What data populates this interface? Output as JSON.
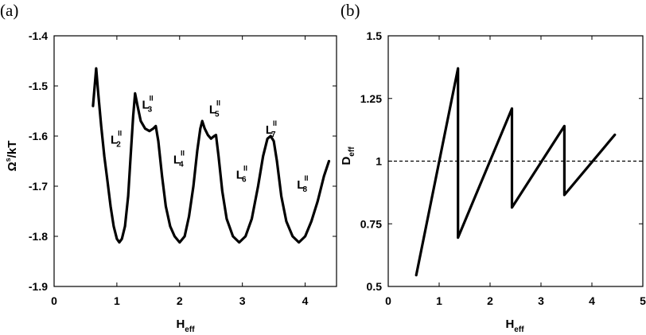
{
  "chart_data": [
    {
      "type": "line",
      "panel_label": "(a)",
      "xlabel": {
        "main": "H",
        "sub": "eff"
      },
      "ylabel": {
        "main": "Ω",
        "sup": "s",
        "rest": "/kT"
      },
      "xlim": [
        0,
        4.5
      ],
      "ylim": [
        -1.9,
        -1.4
      ],
      "xticks": [
        "0",
        "1",
        "2",
        "3",
        "4"
      ],
      "yticks": [
        "-1.4",
        "-1.5",
        "-1.6",
        "-1.7",
        "-1.8",
        "-1.9"
      ],
      "series": [
        {
          "points": [
            [
              0.62,
              -1.54
            ],
            [
              0.64,
              -1.51
            ],
            [
              0.67,
              -1.465
            ],
            [
              0.7,
              -1.51
            ],
            [
              0.75,
              -1.58
            ],
            [
              0.8,
              -1.64
            ],
            [
              0.85,
              -1.69
            ],
            [
              0.9,
              -1.74
            ],
            [
              0.95,
              -1.78
            ],
            [
              1.0,
              -1.805
            ],
            [
              1.04,
              -1.812
            ],
            [
              1.08,
              -1.805
            ],
            [
              1.13,
              -1.78
            ],
            [
              1.18,
              -1.72
            ],
            [
              1.22,
              -1.64
            ],
            [
              1.26,
              -1.56
            ],
            [
              1.29,
              -1.515
            ],
            [
              1.33,
              -1.54
            ],
            [
              1.38,
              -1.57
            ],
            [
              1.45,
              -1.585
            ],
            [
              1.52,
              -1.59
            ],
            [
              1.58,
              -1.585
            ],
            [
              1.62,
              -1.58
            ],
            [
              1.66,
              -1.61
            ],
            [
              1.72,
              -1.68
            ],
            [
              1.78,
              -1.74
            ],
            [
              1.85,
              -1.78
            ],
            [
              1.92,
              -1.8
            ],
            [
              2.0,
              -1.812
            ],
            [
              2.08,
              -1.8
            ],
            [
              2.15,
              -1.76
            ],
            [
              2.22,
              -1.7
            ],
            [
              2.28,
              -1.63
            ],
            [
              2.33,
              -1.585
            ],
            [
              2.36,
              -1.57
            ],
            [
              2.4,
              -1.585
            ],
            [
              2.45,
              -1.598
            ],
            [
              2.5,
              -1.605
            ],
            [
              2.55,
              -1.6
            ],
            [
              2.58,
              -1.598
            ],
            [
              2.62,
              -1.64
            ],
            [
              2.68,
              -1.71
            ],
            [
              2.75,
              -1.765
            ],
            [
              2.85,
              -1.8
            ],
            [
              2.95,
              -1.812
            ],
            [
              3.05,
              -1.8
            ],
            [
              3.15,
              -1.765
            ],
            [
              3.25,
              -1.7
            ],
            [
              3.33,
              -1.64
            ],
            [
              3.4,
              -1.605
            ],
            [
              3.45,
              -1.6
            ],
            [
              3.5,
              -1.61
            ],
            [
              3.55,
              -1.65
            ],
            [
              3.62,
              -1.72
            ],
            [
              3.7,
              -1.77
            ],
            [
              3.8,
              -1.8
            ],
            [
              3.9,
              -1.812
            ],
            [
              4.0,
              -1.8
            ],
            [
              4.1,
              -1.77
            ],
            [
              4.2,
              -1.73
            ],
            [
              4.3,
              -1.68
            ],
            [
              4.38,
              -1.65
            ]
          ]
        }
      ],
      "annotations": [
        {
          "main": "L",
          "sup": "II",
          "sub": "2",
          "x": 0.9,
          "y": -1.615
        },
        {
          "main": "L",
          "sup": "II",
          "sub": "3",
          "x": 1.4,
          "y": -1.545
        },
        {
          "main": "L",
          "sup": "II",
          "sub": "4",
          "x": 1.9,
          "y": -1.655
        },
        {
          "main": "L",
          "sup": "II",
          "sub": "5",
          "x": 2.47,
          "y": -1.555
        },
        {
          "main": "L",
          "sup": "II",
          "sub": "6",
          "x": 2.9,
          "y": -1.685
        },
        {
          "main": "L",
          "sup": "II",
          "sub": "7",
          "x": 3.37,
          "y": -1.595
        },
        {
          "main": "L",
          "sup": "II",
          "sub": "8",
          "x": 3.87,
          "y": -1.705
        }
      ]
    },
    {
      "type": "line",
      "panel_label": "(b)",
      "xlabel": {
        "main": "H",
        "sub": "eff"
      },
      "ylabel": {
        "main": "D",
        "sub": "eff"
      },
      "xlim": [
        0,
        5
      ],
      "ylim": [
        0.5,
        1.5
      ],
      "xticks": [
        "0",
        "1",
        "2",
        "3",
        "4",
        "5"
      ],
      "yticks": [
        "1.5",
        "1.25",
        "1",
        "0.75",
        "0.5"
      ],
      "reference_line": {
        "y": 1,
        "style": "dashed"
      },
      "series": [
        {
          "points": [
            [
              0.55,
              0.545
            ],
            [
              1.37,
              1.37
            ],
            [
              1.37,
              0.695
            ],
            [
              2.43,
              1.21
            ],
            [
              2.43,
              0.815
            ],
            [
              3.46,
              1.14
            ],
            [
              3.46,
              0.865
            ],
            [
              4.45,
              1.105
            ]
          ]
        }
      ]
    }
  ]
}
